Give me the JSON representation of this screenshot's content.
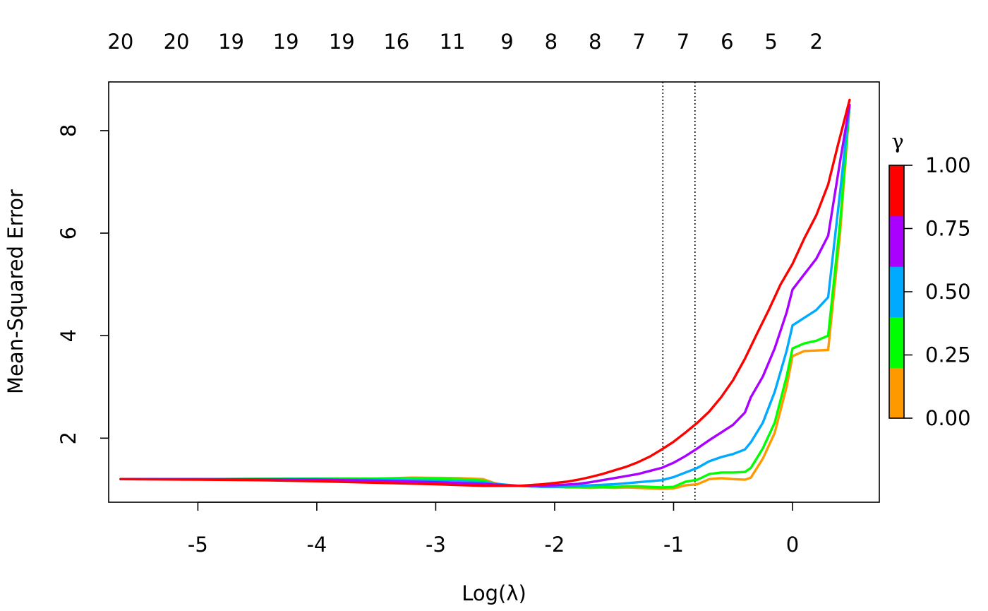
{
  "chart_data": {
    "type": "line",
    "xlabel": "Log(λ)",
    "ylabel": "Mean-Squared Error",
    "xlim": [
      -5.75,
      0.73
    ],
    "ylim": [
      0.75,
      8.95
    ],
    "x_ticks": [
      -5,
      -4,
      -3,
      -2,
      -1,
      0
    ],
    "y_ticks": [
      2,
      4,
      6,
      8
    ],
    "top_axis": {
      "x": [
        -5.65,
        -5.18,
        -4.72,
        -4.26,
        -3.79,
        -3.33,
        -2.86,
        -2.4,
        -2.03,
        -1.66,
        -1.29,
        -0.92,
        -0.55,
        -0.18,
        0.2
      ],
      "labels": [
        "20",
        "20",
        "19",
        "19",
        "19",
        "16",
        "11",
        "9",
        "8",
        "8",
        "7",
        "7",
        "6",
        "5",
        "2"
      ]
    },
    "vlines": [
      -1.09,
      -0.82
    ],
    "grid": false,
    "legend": {
      "title": "γ",
      "position": "right",
      "ticks": [
        "0.00",
        "0.25",
        "0.50",
        "0.75",
        "1.00"
      ],
      "colors": [
        "#FF9900",
        "#00FF00",
        "#00AAFF",
        "#AA00FF",
        "#FF0000"
      ]
    },
    "series": [
      {
        "color": "#FF9900",
        "x": [
          -5.65,
          -5.0,
          -4.0,
          -3.5,
          -3.2,
          -2.8,
          -2.6,
          -2.5,
          -2.4,
          -2.3,
          -2.2,
          -2.1,
          -2.0,
          -1.9,
          -1.8,
          -1.7,
          -1.6,
          -1.5,
          -1.4,
          -1.3,
          -1.2,
          -1.1,
          -1.0,
          -0.9,
          -0.8,
          -0.7,
          -0.6,
          -0.5,
          -0.4,
          -0.35,
          -0.25,
          -0.15,
          -0.05,
          0.0,
          0.1,
          0.2,
          0.3,
          0.4,
          0.48
        ],
        "y": [
          1.2,
          1.2,
          1.21,
          1.21,
          1.23,
          1.22,
          1.2,
          1.12,
          1.08,
          1.07,
          1.07,
          1.05,
          1.05,
          1.04,
          1.04,
          1.03,
          1.04,
          1.03,
          1.04,
          1.03,
          1.02,
          1.01,
          1.02,
          1.08,
          1.1,
          1.2,
          1.22,
          1.2,
          1.19,
          1.23,
          1.6,
          2.1,
          3.0,
          3.6,
          3.7,
          3.71,
          3.72,
          6.0,
          8.5
        ]
      },
      {
        "color": "#00FF00",
        "x": [
          -5.65,
          -5.0,
          -4.0,
          -3.5,
          -3.2,
          -2.8,
          -2.6,
          -2.5,
          -2.4,
          -2.3,
          -2.2,
          -2.1,
          -2.0,
          -1.9,
          -1.8,
          -1.7,
          -1.6,
          -1.5,
          -1.4,
          -1.3,
          -1.2,
          -1.1,
          -1.0,
          -0.9,
          -0.8,
          -0.7,
          -0.6,
          -0.5,
          -0.4,
          -0.35,
          -0.25,
          -0.15,
          -0.05,
          0.0,
          0.1,
          0.2,
          0.3,
          0.4,
          0.48
        ],
        "y": [
          1.2,
          1.2,
          1.21,
          1.21,
          1.22,
          1.2,
          1.17,
          1.11,
          1.08,
          1.07,
          1.06,
          1.05,
          1.05,
          1.05,
          1.05,
          1.05,
          1.05,
          1.05,
          1.06,
          1.06,
          1.05,
          1.04,
          1.05,
          1.15,
          1.19,
          1.3,
          1.33,
          1.33,
          1.34,
          1.42,
          1.8,
          2.3,
          3.2,
          3.75,
          3.85,
          3.9,
          4.0,
          6.2,
          8.5
        ]
      },
      {
        "color": "#00AAFF",
        "x": [
          -5.65,
          -5.0,
          -4.0,
          -3.5,
          -3.0,
          -2.6,
          -2.5,
          -2.4,
          -2.3,
          -2.2,
          -2.1,
          -2.0,
          -1.9,
          -1.8,
          -1.7,
          -1.6,
          -1.5,
          -1.4,
          -1.3,
          -1.2,
          -1.1,
          -1.0,
          -0.9,
          -0.8,
          -0.7,
          -0.6,
          -0.5,
          -0.4,
          -0.35,
          -0.25,
          -0.15,
          -0.05,
          0.0,
          0.1,
          0.2,
          0.3,
          0.4,
          0.48
        ],
        "y": [
          1.2,
          1.2,
          1.2,
          1.19,
          1.17,
          1.14,
          1.11,
          1.09,
          1.07,
          1.06,
          1.05,
          1.05,
          1.06,
          1.07,
          1.08,
          1.09,
          1.1,
          1.12,
          1.14,
          1.16,
          1.18,
          1.24,
          1.33,
          1.42,
          1.55,
          1.63,
          1.69,
          1.78,
          1.92,
          2.3,
          2.9,
          3.7,
          4.2,
          4.35,
          4.5,
          4.75,
          6.8,
          8.5
        ]
      },
      {
        "color": "#AA00FF",
        "x": [
          -5.65,
          -5.0,
          -4.0,
          -3.5,
          -3.0,
          -2.6,
          -2.4,
          -2.3,
          -2.2,
          -2.0,
          -1.8,
          -1.7,
          -1.6,
          -1.5,
          -1.4,
          -1.3,
          -1.2,
          -1.1,
          -1.0,
          -0.9,
          -0.8,
          -0.7,
          -0.6,
          -0.5,
          -0.4,
          -0.35,
          -0.25,
          -0.15,
          -0.05,
          0.0,
          0.1,
          0.2,
          0.3,
          0.4,
          0.48
        ],
        "y": [
          1.2,
          1.2,
          1.19,
          1.17,
          1.14,
          1.11,
          1.08,
          1.07,
          1.07,
          1.08,
          1.11,
          1.14,
          1.18,
          1.22,
          1.26,
          1.3,
          1.36,
          1.42,
          1.52,
          1.65,
          1.8,
          1.96,
          2.11,
          2.26,
          2.5,
          2.8,
          3.2,
          3.75,
          4.45,
          4.9,
          5.2,
          5.5,
          5.95,
          7.4,
          8.5
        ]
      },
      {
        "color": "#FF0000",
        "x": [
          -5.65,
          -5.0,
          -4.5,
          -4.0,
          -3.5,
          -3.0,
          -2.6,
          -2.3,
          -2.1,
          -1.9,
          -1.8,
          -1.7,
          -1.6,
          -1.5,
          -1.4,
          -1.3,
          -1.2,
          -1.1,
          -1.0,
          -0.9,
          -0.8,
          -0.7,
          -0.6,
          -0.5,
          -0.4,
          -0.3,
          -0.2,
          -0.1,
          0.0,
          0.1,
          0.2,
          0.3,
          0.38,
          0.48
        ],
        "y": [
          1.2,
          1.19,
          1.18,
          1.16,
          1.13,
          1.1,
          1.07,
          1.07,
          1.1,
          1.15,
          1.19,
          1.24,
          1.3,
          1.37,
          1.44,
          1.53,
          1.64,
          1.78,
          1.93,
          2.11,
          2.3,
          2.52,
          2.8,
          3.13,
          3.55,
          4.03,
          4.5,
          5.0,
          5.4,
          5.9,
          6.35,
          6.95,
          7.7,
          8.6
        ]
      }
    ]
  }
}
